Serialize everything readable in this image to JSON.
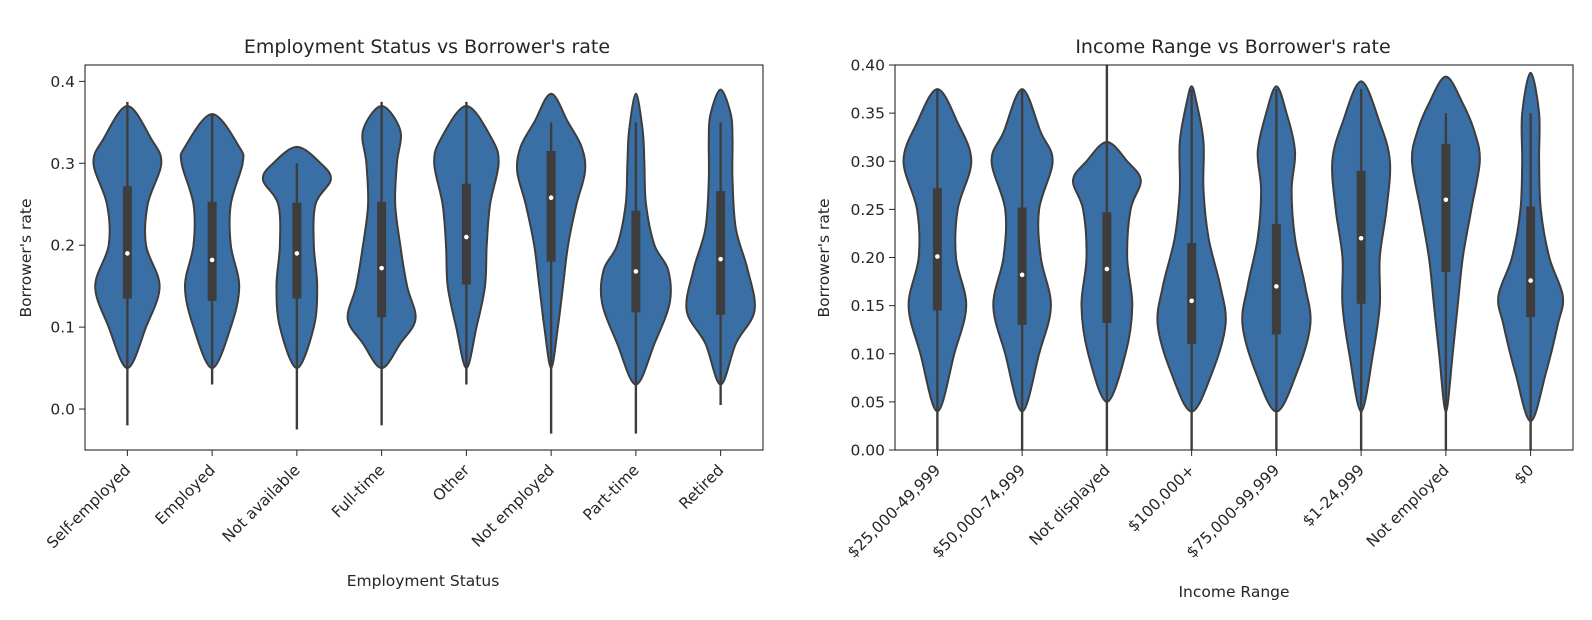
{
  "chart_data": [
    {
      "type": "violin",
      "title": "Employment Status vs Borrower's rate",
      "xlabel": "Employment Status",
      "ylabel": "Borrower's rate",
      "ylim": [
        -0.05,
        0.42
      ],
      "yticks": [
        "0.0",
        "0.1",
        "0.2",
        "0.3",
        "0.4"
      ],
      "ytick_values": [
        0.0,
        0.1,
        0.2,
        0.3,
        0.4
      ],
      "color": "#3a6fa5",
      "categories": [
        "Self-employed",
        "Employed",
        "Not available",
        "Full-time",
        "Other",
        "Not employed",
        "Part-time",
        "Retired"
      ],
      "stats": [
        {
          "min": -0.02,
          "q1": 0.135,
          "median": 0.19,
          "q3": 0.272,
          "max": 0.375,
          "width_profile": [
            [
              0.05,
              0.05
            ],
            [
              0.1,
              0.55
            ],
            [
              0.15,
              0.95
            ],
            [
              0.2,
              0.55
            ],
            [
              0.25,
              0.6
            ],
            [
              0.3,
              1.0
            ],
            [
              0.33,
              0.7
            ],
            [
              0.37,
              0.05
            ]
          ]
        },
        {
          "min": 0.03,
          "q1": 0.132,
          "median": 0.182,
          "q3": 0.253,
          "max": 0.36,
          "width_profile": [
            [
              0.05,
              0.05
            ],
            [
              0.1,
              0.55
            ],
            [
              0.15,
              0.8
            ],
            [
              0.2,
              0.55
            ],
            [
              0.25,
              0.55
            ],
            [
              0.3,
              0.9
            ],
            [
              0.32,
              0.8
            ],
            [
              0.36,
              0.05
            ]
          ]
        },
        {
          "min": -0.025,
          "q1": 0.135,
          "median": 0.19,
          "q3": 0.252,
          "max": 0.3,
          "width_profile": [
            [
              0.05,
              0.02
            ],
            [
              0.1,
              0.5
            ],
            [
              0.15,
              0.6
            ],
            [
              0.2,
              0.5
            ],
            [
              0.25,
              0.55
            ],
            [
              0.28,
              1.0
            ],
            [
              0.3,
              0.7
            ],
            [
              0.32,
              0.05
            ]
          ]
        },
        {
          "min": -0.02,
          "q1": 0.112,
          "median": 0.172,
          "q3": 0.253,
          "max": 0.375,
          "width_profile": [
            [
              0.05,
              0.05
            ],
            [
              0.08,
              0.55
            ],
            [
              0.11,
              1.0
            ],
            [
              0.15,
              0.75
            ],
            [
              0.2,
              0.55
            ],
            [
              0.25,
              0.4
            ],
            [
              0.3,
              0.45
            ],
            [
              0.34,
              0.55
            ],
            [
              0.37,
              0.05
            ]
          ]
        },
        {
          "min": 0.03,
          "q1": 0.152,
          "median": 0.21,
          "q3": 0.275,
          "max": 0.375,
          "width_profile": [
            [
              0.05,
              0.05
            ],
            [
              0.1,
              0.3
            ],
            [
              0.15,
              0.55
            ],
            [
              0.2,
              0.6
            ],
            [
              0.25,
              0.7
            ],
            [
              0.3,
              0.95
            ],
            [
              0.33,
              0.75
            ],
            [
              0.37,
              0.05
            ]
          ]
        },
        {
          "min": -0.03,
          "q1": 0.18,
          "median": 0.258,
          "q3": 0.315,
          "max": 0.35,
          "width_profile": [
            [
              0.05,
              0.05
            ],
            [
              0.1,
              0.2
            ],
            [
              0.15,
              0.35
            ],
            [
              0.2,
              0.5
            ],
            [
              0.25,
              0.75
            ],
            [
              0.29,
              1.0
            ],
            [
              0.32,
              0.9
            ],
            [
              0.35,
              0.5
            ],
            [
              0.385,
              0.05
            ]
          ]
        },
        {
          "min": -0.03,
          "q1": 0.118,
          "median": 0.168,
          "q3": 0.242,
          "max": 0.35,
          "width_profile": [
            [
              0.03,
              0.05
            ],
            [
              0.08,
              0.55
            ],
            [
              0.13,
              1.0
            ],
            [
              0.17,
              0.95
            ],
            [
              0.2,
              0.55
            ],
            [
              0.25,
              0.3
            ],
            [
              0.3,
              0.25
            ],
            [
              0.34,
              0.2
            ],
            [
              0.385,
              0.05
            ]
          ]
        },
        {
          "min": 0.005,
          "q1": 0.115,
          "median": 0.183,
          "q3": 0.266,
          "max": 0.35,
          "width_profile": [
            [
              0.03,
              0.05
            ],
            [
              0.08,
              0.45
            ],
            [
              0.12,
              1.0
            ],
            [
              0.17,
              0.8
            ],
            [
              0.22,
              0.45
            ],
            [
              0.28,
              0.35
            ],
            [
              0.33,
              0.35
            ],
            [
              0.36,
              0.3
            ],
            [
              0.39,
              0.05
            ]
          ]
        }
      ]
    },
    {
      "type": "violin",
      "title": "Income Range vs Borrower's rate",
      "xlabel": "Income Range",
      "ylabel": "Borrower's rate",
      "ylim": [
        0.0,
        0.4
      ],
      "yticks": [
        "0.00",
        "0.05",
        "0.10",
        "0.15",
        "0.20",
        "0.25",
        "0.30",
        "0.35",
        "0.40"
      ],
      "ytick_values": [
        0.0,
        0.05,
        0.1,
        0.15,
        0.2,
        0.25,
        0.3,
        0.35,
        0.4
      ],
      "color": "#3a6fa5",
      "categories": [
        "$25,000-49,999",
        "$50,000-74,999",
        "Not displayed",
        "$100,000+",
        "$75,000-99,999",
        "$1-24,999",
        "Not employed",
        "$0"
      ],
      "stats": [
        {
          "min": 0.0,
          "q1": 0.145,
          "median": 0.201,
          "q3": 0.272,
          "max": 0.375,
          "width_profile": [
            [
              0.04,
              0.05
            ],
            [
              0.1,
              0.5
            ],
            [
              0.15,
              0.85
            ],
            [
              0.2,
              0.55
            ],
            [
              0.25,
              0.6
            ],
            [
              0.3,
              1.0
            ],
            [
              0.34,
              0.6
            ],
            [
              0.375,
              0.05
            ]
          ]
        },
        {
          "min": 0.0,
          "q1": 0.13,
          "median": 0.182,
          "q3": 0.252,
          "max": 0.375,
          "width_profile": [
            [
              0.04,
              0.05
            ],
            [
              0.1,
              0.5
            ],
            [
              0.15,
              0.85
            ],
            [
              0.2,
              0.55
            ],
            [
              0.25,
              0.5
            ],
            [
              0.3,
              0.9
            ],
            [
              0.33,
              0.55
            ],
            [
              0.375,
              0.05
            ]
          ]
        },
        {
          "min": 0.0,
          "q1": 0.132,
          "median": 0.188,
          "q3": 0.247,
          "max": 0.4,
          "width_profile": [
            [
              0.05,
              0.05
            ],
            [
              0.1,
              0.55
            ],
            [
              0.15,
              0.75
            ],
            [
              0.2,
              0.6
            ],
            [
              0.25,
              0.7
            ],
            [
              0.28,
              1.0
            ],
            [
              0.3,
              0.6
            ],
            [
              0.32,
              0.05
            ]
          ]
        },
        {
          "min": 0.0,
          "q1": 0.11,
          "median": 0.155,
          "q3": 0.215,
          "max": 0.375,
          "width_profile": [
            [
              0.04,
              0.05
            ],
            [
              0.08,
              0.6
            ],
            [
              0.13,
              1.0
            ],
            [
              0.17,
              0.85
            ],
            [
              0.22,
              0.5
            ],
            [
              0.27,
              0.35
            ],
            [
              0.32,
              0.35
            ],
            [
              0.36,
              0.15
            ],
            [
              0.378,
              0.05
            ]
          ]
        },
        {
          "min": 0.0,
          "q1": 0.12,
          "median": 0.17,
          "q3": 0.235,
          "max": 0.375,
          "width_profile": [
            [
              0.04,
              0.05
            ],
            [
              0.08,
              0.6
            ],
            [
              0.13,
              1.0
            ],
            [
              0.17,
              0.85
            ],
            [
              0.22,
              0.55
            ],
            [
              0.27,
              0.45
            ],
            [
              0.31,
              0.55
            ],
            [
              0.35,
              0.3
            ],
            [
              0.378,
              0.05
            ]
          ]
        },
        {
          "min": 0.0,
          "q1": 0.152,
          "median": 0.22,
          "q3": 0.29,
          "max": 0.375,
          "width_profile": [
            [
              0.04,
              0.05
            ],
            [
              0.1,
              0.35
            ],
            [
              0.15,
              0.55
            ],
            [
              0.2,
              0.55
            ],
            [
              0.25,
              0.75
            ],
            [
              0.3,
              0.85
            ],
            [
              0.34,
              0.55
            ],
            [
              0.383,
              0.05
            ]
          ]
        },
        {
          "min": 0.0,
          "q1": 0.185,
          "median": 0.26,
          "q3": 0.318,
          "max": 0.35,
          "width_profile": [
            [
              0.04,
              0.05
            ],
            [
              0.1,
              0.2
            ],
            [
              0.15,
              0.35
            ],
            [
              0.2,
              0.5
            ],
            [
              0.25,
              0.75
            ],
            [
              0.3,
              1.0
            ],
            [
              0.33,
              0.85
            ],
            [
              0.36,
              0.5
            ],
            [
              0.388,
              0.05
            ]
          ]
        },
        {
          "min": 0.0,
          "q1": 0.138,
          "median": 0.176,
          "q3": 0.253,
          "max": 0.35,
          "width_profile": [
            [
              0.03,
              0.05
            ],
            [
              0.08,
              0.45
            ],
            [
              0.13,
              0.8
            ],
            [
              0.16,
              0.95
            ],
            [
              0.2,
              0.55
            ],
            [
              0.25,
              0.3
            ],
            [
              0.3,
              0.25
            ],
            [
              0.35,
              0.25
            ],
            [
              0.392,
              0.05
            ]
          ]
        }
      ]
    }
  ]
}
